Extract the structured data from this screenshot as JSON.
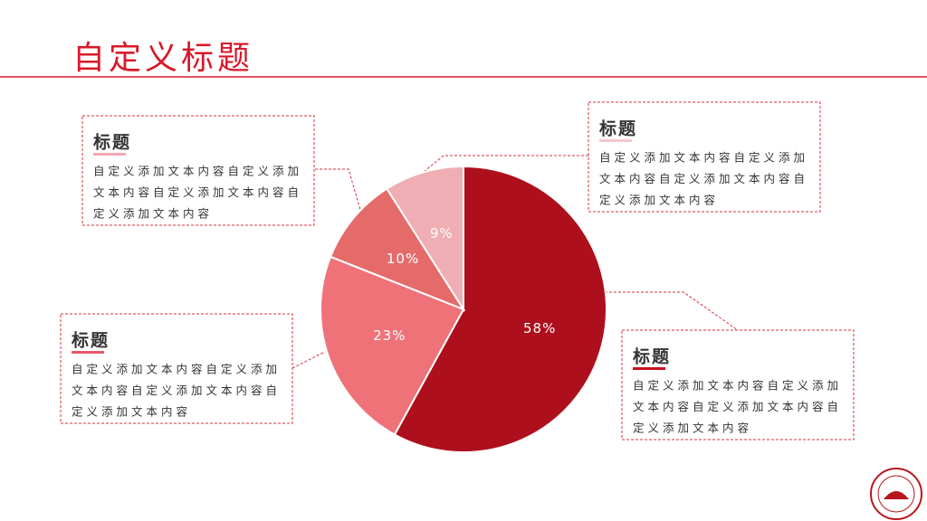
{
  "chart_data": {
    "type": "pie",
    "title": "自定义标题",
    "values": [
      58,
      23,
      10,
      9
    ],
    "value_labels": [
      "58%",
      "23%",
      "10%",
      "9%"
    ],
    "colors": [
      "#ad101c",
      "#ef7279",
      "#e56b6b",
      "#eeaeb3"
    ]
  },
  "callouts": [
    {
      "title": "标题",
      "lines": [
        "自定义添加文本内容自定义添加",
        "文本内容自定义添加文本内容自",
        "定义添加文本内容"
      ]
    },
    {
      "title": "标题",
      "lines": [
        "自定义添加文本内容自定义添加",
        "文本内容自定义添加文本内容自",
        "定义添加文本内容"
      ]
    },
    {
      "title": "标题",
      "lines": [
        "自定义添加文本内容自定义添加",
        "文本内容自定义添加文本内容自",
        "定义添加文本内容"
      ]
    },
    {
      "title": "标题",
      "lines": [
        "自定义添加文本内容自定义添加",
        "文本内容自定义添加文本内容自",
        "定义添加文本内容"
      ]
    }
  ]
}
